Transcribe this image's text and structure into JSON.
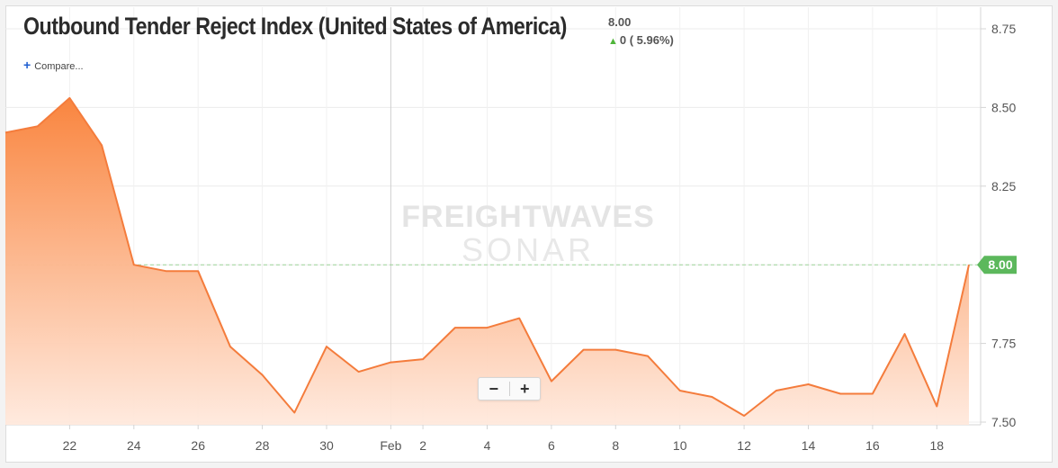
{
  "header": {
    "title": "Outbound Tender Reject Index (United States of America)",
    "last_value": "8.00",
    "change_text": "0 ( 5.96%)",
    "compare_label": "Compare..."
  },
  "watermark": {
    "line1": "FREIGHTWAVES",
    "line2": "SONAR"
  },
  "zoom": {
    "minus": "−",
    "plus": "+"
  },
  "colors": {
    "line": "#f47c3c",
    "fill_top": "#f9853f",
    "fill_bottom": "#ffe9dd",
    "badge": "#5cb85c",
    "up_arrow": "#4fb53a"
  },
  "chart_data": {
    "type": "area",
    "title": "Outbound Tender Reject Index (United States of America)",
    "xlabel": "",
    "ylabel": "",
    "y_axis_position": "right",
    "ylim": [
      7.5,
      8.75
    ],
    "y_ticks": [
      "7.50",
      "7.75",
      "8.00",
      "8.25",
      "8.50",
      "8.75"
    ],
    "x_tick_labels": [
      "22",
      "24",
      "26",
      "28",
      "30",
      "Feb",
      "2",
      "4",
      "6",
      "8",
      "10",
      "12",
      "14",
      "16",
      "18"
    ],
    "x_tick_dates": [
      "Jan 22",
      "Jan 24",
      "Jan 26",
      "Jan 28",
      "Jan 30",
      "Feb 1",
      "Feb 2",
      "Feb 4",
      "Feb 6",
      "Feb 8",
      "Feb 10",
      "Feb 12",
      "Feb 14",
      "Feb 16",
      "Feb 18"
    ],
    "x": [
      "Jan 20",
      "Jan 21",
      "Jan 22",
      "Jan 23",
      "Jan 24",
      "Jan 25",
      "Jan 26",
      "Jan 27",
      "Jan 28",
      "Jan 29",
      "Jan 30",
      "Jan 31",
      "Feb 1",
      "Feb 2",
      "Feb 3",
      "Feb 4",
      "Feb 5",
      "Feb 6",
      "Feb 7",
      "Feb 8",
      "Feb 9",
      "Feb 10",
      "Feb 11",
      "Feb 12",
      "Feb 13",
      "Feb 14",
      "Feb 15",
      "Feb 16",
      "Feb 17",
      "Feb 18",
      "Feb 19"
    ],
    "values": [
      8.42,
      8.44,
      8.53,
      8.38,
      8.0,
      7.98,
      7.98,
      7.74,
      7.65,
      7.53,
      7.74,
      7.66,
      7.69,
      7.7,
      7.8,
      7.8,
      7.83,
      7.63,
      7.73,
      7.73,
      7.71,
      7.6,
      7.58,
      7.52,
      7.6,
      7.62,
      7.59,
      7.59,
      7.78,
      7.55,
      8.0
    ],
    "last_value_label": "8.00",
    "reference_line": 8.0,
    "grid": true
  }
}
